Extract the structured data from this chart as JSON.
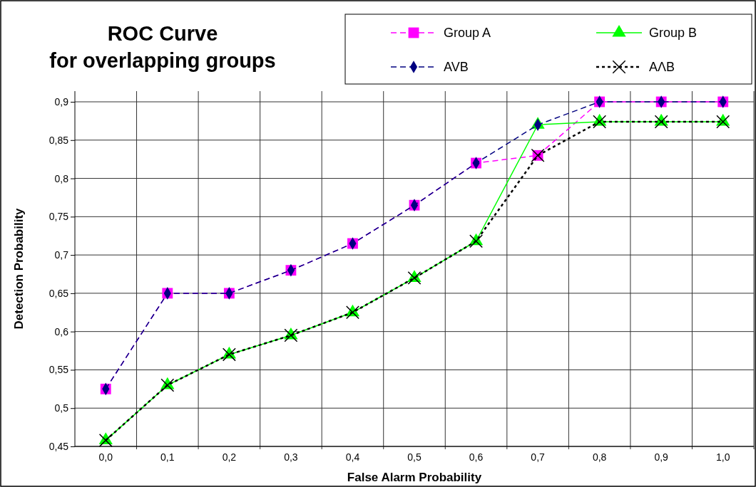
{
  "chart_data": {
    "type": "line",
    "title": "ROC Curve\nfor overlapping groups",
    "xlabel": "False Alarm Probability",
    "ylabel": "Detection Probability",
    "categories": [
      "0,0",
      "0,1",
      "0,2",
      "0,3",
      "0,4",
      "0,5",
      "0,6",
      "0,7",
      "0,8",
      "0,9",
      "1,0"
    ],
    "ylim": [
      0.45,
      0.9
    ],
    "yticks": [
      {
        "value": 0.45,
        "label": "0,45"
      },
      {
        "value": 0.5,
        "label": "0,5"
      },
      {
        "value": 0.55,
        "label": "0,55"
      },
      {
        "value": 0.6,
        "label": "0,6"
      },
      {
        "value": 0.65,
        "label": "0,65"
      },
      {
        "value": 0.7,
        "label": "0,7"
      },
      {
        "value": 0.75,
        "label": "0,75"
      },
      {
        "value": 0.8,
        "label": "0,8"
      },
      {
        "value": 0.85,
        "label": "0,85"
      },
      {
        "value": 0.9,
        "label": "0,9"
      }
    ],
    "grid": true,
    "legend": "top right",
    "series": [
      {
        "name": "Group A",
        "color": "#ff00ff",
        "marker": "square",
        "line_style": "dashed",
        "values": [
          0.525,
          0.65,
          0.65,
          0.68,
          0.715,
          0.765,
          0.82,
          0.83,
          0.9,
          0.9,
          0.9
        ]
      },
      {
        "name": "Group B",
        "color": "#00ff00",
        "marker": "triangle",
        "line_style": "solid",
        "values": [
          0.458,
          0.53,
          0.57,
          0.595,
          0.625,
          0.67,
          0.718,
          0.87,
          0.874,
          0.874,
          0.874
        ]
      },
      {
        "name": "AVB",
        "color": "#000080",
        "marker": "diamond",
        "line_style": "dashed",
        "values": [
          0.525,
          0.65,
          0.65,
          0.68,
          0.715,
          0.765,
          0.82,
          0.87,
          0.9,
          0.9,
          0.9
        ]
      },
      {
        "name": "AΛB",
        "color": "#000000",
        "marker": "cross",
        "line_style": "dotted",
        "values": [
          0.458,
          0.53,
          0.57,
          0.595,
          0.625,
          0.67,
          0.718,
          0.83,
          0.874,
          0.874,
          0.874
        ]
      }
    ]
  }
}
